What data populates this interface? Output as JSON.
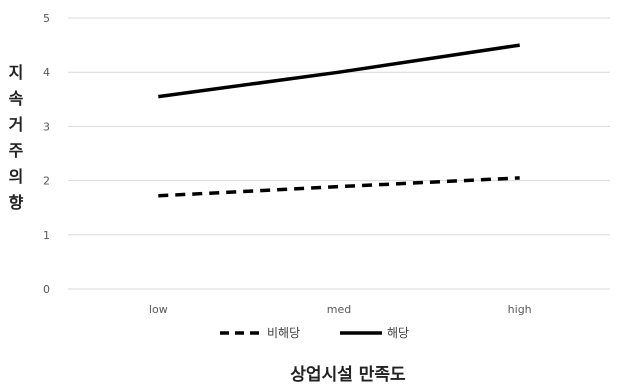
{
  "chart_data": {
    "type": "line",
    "categories": [
      "low",
      "med",
      "high"
    ],
    "ylim": [
      0,
      5
    ],
    "yticks": [
      0,
      1,
      2,
      3,
      4,
      5
    ],
    "ylabel": "지속거주의향",
    "xlabel": "상업시설 만족도",
    "grid": true,
    "legend_position": "bottom",
    "series": [
      {
        "name": "비해당",
        "values": [
          1.72,
          1.89,
          2.05
        ],
        "style": "dashed",
        "color": "#000000"
      },
      {
        "name": "해당",
        "values": [
          3.55,
          4.0,
          4.5
        ],
        "style": "solid",
        "color": "#000000"
      }
    ]
  }
}
